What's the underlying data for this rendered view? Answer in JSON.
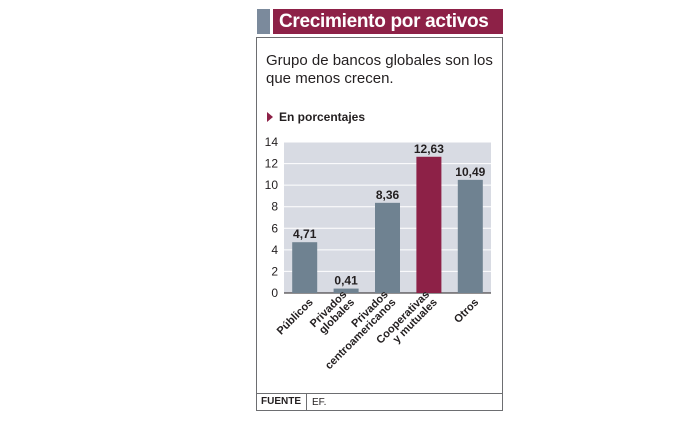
{
  "header": {
    "title": "Crecimiento por activos"
  },
  "subtitle": "Grupo de bancos globales son los que menos crecen.",
  "units_label": "En porcentajes",
  "colors": {
    "header_bg": "#8d2147",
    "accent": "#7b8a9c",
    "bar": "#6f8291",
    "highlight": "#8d2147",
    "plot_bg": "#d8dbe3"
  },
  "chart_data": {
    "type": "bar",
    "categories": [
      "Públicos",
      "Privados globales",
      "Privados centroamericanos",
      "Cooperativas y mutuales",
      "Otros"
    ],
    "category_lines": [
      [
        "Públicos"
      ],
      [
        "Privados",
        "globales"
      ],
      [
        "Privados",
        "centroamericanos"
      ],
      [
        "Cooperativas",
        "y mutuales"
      ],
      [
        "Otros"
      ]
    ],
    "values": [
      4.71,
      0.41,
      8.36,
      12.63,
      10.49
    ],
    "value_labels": [
      "4,71",
      "0,41",
      "8,36",
      "12,63",
      "10,49"
    ],
    "highlight_index": 3,
    "ylim": [
      0,
      14
    ],
    "yticks": [
      0,
      2,
      4,
      6,
      8,
      10,
      12,
      14
    ],
    "grid": true
  },
  "footer": {
    "source_label": "FUENTE",
    "source_value": "EF."
  }
}
